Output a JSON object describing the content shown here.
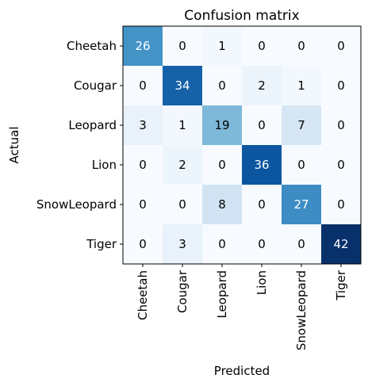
{
  "chart_data": {
    "type": "heatmap",
    "title": "Confusion matrix",
    "xlabel": "Predicted",
    "ylabel": "Actual",
    "x_categories": [
      "Cheetah",
      "Cougar",
      "Leopard",
      "Lion",
      "SnowLeopard",
      "Tiger"
    ],
    "y_categories": [
      "Cheetah",
      "Cougar",
      "Leopard",
      "Lion",
      "SnowLeopard",
      "Tiger"
    ],
    "values": [
      [
        26,
        0,
        1,
        0,
        0,
        0
      ],
      [
        0,
        34,
        0,
        2,
        1,
        0
      ],
      [
        3,
        1,
        19,
        0,
        7,
        0
      ],
      [
        0,
        2,
        0,
        36,
        0,
        0
      ],
      [
        0,
        0,
        8,
        0,
        27,
        0
      ],
      [
        0,
        3,
        0,
        0,
        0,
        42
      ]
    ],
    "colormap": "Blues",
    "vmin": 0,
    "vmax": 42
  }
}
